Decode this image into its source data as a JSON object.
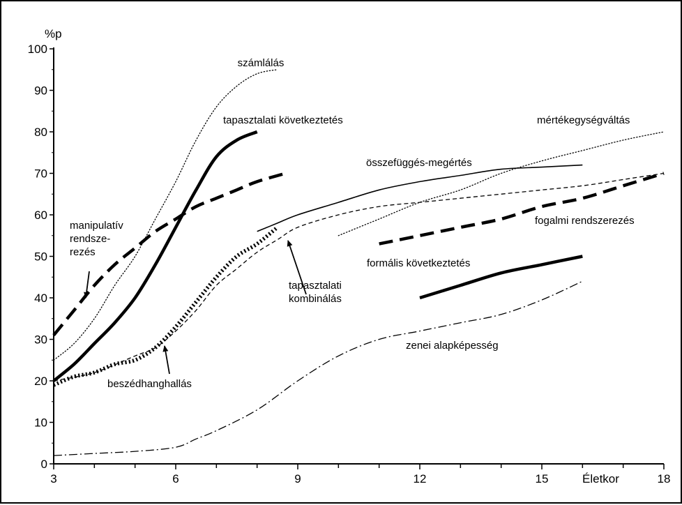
{
  "chart_data": {
    "type": "line",
    "ylabel": "%p",
    "xlabel": "Életkor",
    "xlim": [
      3,
      18
    ],
    "ylim": [
      0,
      100
    ],
    "x_ticks": [
      3,
      6,
      9,
      12,
      15,
      18
    ],
    "y_ticks": [
      0,
      10,
      20,
      30,
      40,
      50,
      60,
      70,
      80,
      90,
      100
    ],
    "grid": false,
    "series": [
      {
        "name": "számlálás",
        "style": "dotted",
        "color": "#000000",
        "points": [
          [
            3,
            25
          ],
          [
            3.5,
            29
          ],
          [
            4,
            35
          ],
          [
            4.5,
            43
          ],
          [
            5,
            50
          ],
          [
            5.5,
            59
          ],
          [
            6,
            68
          ],
          [
            6.5,
            78
          ],
          [
            7,
            86
          ],
          [
            7.5,
            91
          ],
          [
            8,
            94
          ],
          [
            8.5,
            95
          ]
        ]
      },
      {
        "name": "tapasztalati következtetés",
        "style": "thick-solid",
        "color": "#000000",
        "points": [
          [
            3,
            20
          ],
          [
            3.5,
            24
          ],
          [
            4,
            29
          ],
          [
            4.5,
            34
          ],
          [
            5,
            40
          ],
          [
            5.5,
            48
          ],
          [
            6,
            57
          ],
          [
            6.5,
            66
          ],
          [
            7,
            74
          ],
          [
            7.5,
            78
          ],
          [
            8,
            80
          ]
        ]
      },
      {
        "name": "manipulatív rendszerezés",
        "style": "thick-dashed",
        "color": "#000000",
        "points": [
          [
            3,
            31
          ],
          [
            3.5,
            37
          ],
          [
            4,
            43
          ],
          [
            4.5,
            48
          ],
          [
            5,
            52
          ],
          [
            5.5,
            56
          ],
          [
            6,
            59
          ],
          [
            6.5,
            62
          ],
          [
            7,
            64
          ],
          [
            7.5,
            66
          ],
          [
            8,
            68
          ],
          [
            8.7,
            70
          ]
        ]
      },
      {
        "name": "beszédhanghallás",
        "style": "thick-dotted",
        "color": "#000000",
        "points": [
          [
            3,
            19
          ],
          [
            3.5,
            21
          ],
          [
            4,
            22
          ],
          [
            4.5,
            24
          ],
          [
            5,
            25
          ],
          [
            5.5,
            28
          ],
          [
            6,
            33
          ],
          [
            6.5,
            39
          ],
          [
            7,
            45
          ],
          [
            7.5,
            50
          ],
          [
            8,
            53
          ],
          [
            8.5,
            57
          ]
        ]
      },
      {
        "name": "tapasztalati kombinálás",
        "style": "thin-dashed",
        "color": "#000000",
        "points": [
          [
            3,
            20
          ],
          [
            4,
            22
          ],
          [
            5,
            26
          ],
          [
            5.5,
            28
          ],
          [
            6,
            32
          ],
          [
            6.5,
            37
          ],
          [
            7,
            43
          ],
          [
            7.5,
            47
          ],
          [
            8,
            51
          ],
          [
            8.5,
            54
          ],
          [
            9,
            57
          ],
          [
            10,
            60
          ],
          [
            11,
            62
          ],
          [
            12,
            63
          ],
          [
            13,
            64
          ],
          [
            14,
            65
          ],
          [
            15,
            66
          ],
          [
            16,
            67
          ],
          [
            17,
            68.5
          ],
          [
            18,
            70
          ]
        ]
      },
      {
        "name": "összefüggés-megértés",
        "style": "thin-solid",
        "color": "#000000",
        "points": [
          [
            8,
            56
          ],
          [
            8.5,
            58
          ],
          [
            9,
            60
          ],
          [
            10,
            63
          ],
          [
            11,
            66
          ],
          [
            12,
            68
          ],
          [
            13,
            69.5
          ],
          [
            14,
            71
          ],
          [
            15,
            71.5
          ],
          [
            16,
            72
          ]
        ]
      },
      {
        "name": "mértékegységváltás",
        "style": "dotted",
        "color": "#000000",
        "points": [
          [
            10,
            55
          ],
          [
            11,
            59
          ],
          [
            12,
            63
          ],
          [
            13,
            66
          ],
          [
            14,
            70
          ],
          [
            15,
            73
          ],
          [
            16,
            75.5
          ],
          [
            17,
            78
          ],
          [
            18,
            80
          ]
        ]
      },
      {
        "name": "fogalmi rendszerezés",
        "style": "thick-dashed",
        "color": "#000000",
        "points": [
          [
            11,
            53
          ],
          [
            12,
            55
          ],
          [
            13,
            57
          ],
          [
            14,
            59
          ],
          [
            15,
            62
          ],
          [
            16,
            64
          ],
          [
            17,
            67
          ],
          [
            18,
            70
          ]
        ]
      },
      {
        "name": "formális következtetés",
        "style": "thick-solid",
        "color": "#000000",
        "points": [
          [
            12,
            40
          ],
          [
            13,
            43
          ],
          [
            14,
            46
          ],
          [
            15,
            48
          ],
          [
            16,
            50
          ]
        ]
      },
      {
        "name": "zenei alapképesség",
        "style": "dash-dot",
        "color": "#000000",
        "points": [
          [
            3,
            2
          ],
          [
            4,
            2.5
          ],
          [
            5,
            3
          ],
          [
            6,
            4
          ],
          [
            6.5,
            6
          ],
          [
            7,
            8
          ],
          [
            8,
            13
          ],
          [
            9,
            20
          ],
          [
            10,
            26
          ],
          [
            11,
            30
          ],
          [
            12,
            32
          ],
          [
            13,
            34
          ],
          [
            14,
            36
          ],
          [
            15,
            39.5
          ],
          [
            16,
            44
          ]
        ]
      }
    ],
    "annotations": [
      {
        "id": "szamlalas",
        "lines": [
          "számlálás"
        ]
      },
      {
        "id": "tapasztalati-kovetkeztetes",
        "lines": [
          "tapasztalati következtetés"
        ]
      },
      {
        "id": "mertekegysegvaltas",
        "lines": [
          "mértékegységváltás"
        ]
      },
      {
        "id": "osszefugges-megertes",
        "lines": [
          "összefüggés-megértés"
        ]
      },
      {
        "id": "manipulativ",
        "lines": [
          "manipulatív",
          "rendsze-",
          "rezés"
        ]
      },
      {
        "id": "fogalmi-rendszerezes",
        "lines": [
          "fogalmi rendszerezés"
        ]
      },
      {
        "id": "formalis-kovetkeztetes",
        "lines": [
          "formális következtetés"
        ]
      },
      {
        "id": "tapasztalati-kombinalas",
        "lines": [
          "tapasztalati",
          "kombinálás"
        ]
      },
      {
        "id": "zenei-alapkepesseg",
        "lines": [
          "zenei alapképesség"
        ]
      },
      {
        "id": "beszedhanghallas",
        "lines": [
          "beszédhanghallás"
        ]
      }
    ]
  }
}
